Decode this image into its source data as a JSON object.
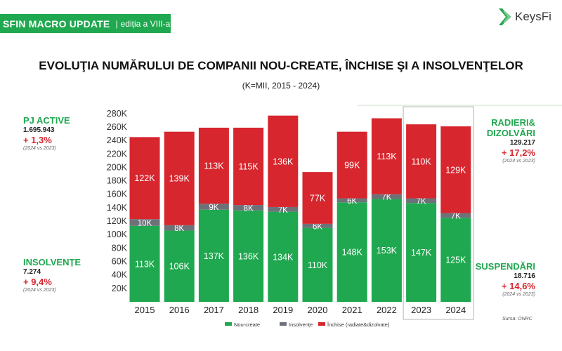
{
  "header": {
    "banner_title": "SFIN MACRO UPDATE",
    "banner_separator": "|",
    "banner_subtitle": "ediția a VIII-a",
    "logo_text": "KeysFi"
  },
  "title": "EVOLUŢIA NUMĂRULUI DE COMPANII NOU-CREATE, ÎNCHISE ŞI A INSOLVENŢELOR",
  "subtitle": "(K=MII, 2015 - 2024)",
  "stats": {
    "pj_active": {
      "label": "PJ ACTIVE",
      "value": "1.695.943",
      "change": "+ 1,3%",
      "note": "(2024 vs 2023)"
    },
    "insolvente": {
      "label": "INSOLVENȚE",
      "value": "7.274",
      "change": "+ 9,4%",
      "note": "(2024 vs 2023)"
    },
    "radieri": {
      "label_line1": "RADIERI&",
      "label_line2": "DIZOLVĂRI",
      "value": "129.217",
      "change": "+ 17,2%",
      "note": "(2024 vs 2023)"
    },
    "suspendari": {
      "label": "SUSPENDĂRI",
      "value": "18.716",
      "change": "+ 14,6%",
      "note": "(2024 vs 2023)"
    }
  },
  "source": "Sursa: ONRC",
  "colors": {
    "green": "#1fa84f",
    "grey": "#6d7178",
    "red": "#d7262e"
  },
  "chart_data": {
    "type": "bar",
    "stacked": true,
    "categories": [
      "2015",
      "2016",
      "2017",
      "2018",
      "2019",
      "2020",
      "2021",
      "2022",
      "2023",
      "2024"
    ],
    "series": [
      {
        "name": "Nou-create",
        "color": "#1fa84f",
        "values": [
          113,
          106,
          137,
          136,
          134,
          110,
          148,
          153,
          147,
          125
        ],
        "labels": [
          "113K",
          "106K",
          "137K",
          "136K",
          "134K",
          "110K",
          "148K",
          "153K",
          "147K",
          "125K"
        ]
      },
      {
        "name": "Insolvențe",
        "color": "#6d7178",
        "values": [
          10,
          8,
          9,
          8,
          7,
          6,
          6,
          7,
          7,
          7
        ],
        "labels": [
          "10K",
          "8K",
          "9K",
          "8K",
          "7K",
          "6K",
          "6K",
          "7K",
          "7K",
          "7K"
        ]
      },
      {
        "name": "Închise (radiate&dizolvate)",
        "color": "#d7262e",
        "values": [
          122,
          139,
          113,
          115,
          136,
          77,
          99,
          113,
          110,
          129
        ],
        "labels": [
          "122K",
          "139K",
          "113K",
          "115K",
          "136K",
          "77K",
          "99K",
          "113K",
          "110K",
          "129K"
        ]
      }
    ],
    "y_ticks": [
      "20K",
      "40K",
      "60K",
      "80K",
      "100K",
      "120K",
      "140K",
      "160K",
      "180K",
      "200K",
      "220K",
      "240K",
      "260K",
      "280K"
    ],
    "ylim": [
      0,
      285
    ],
    "unit": "K",
    "highlight": [
      "2023",
      "2024"
    ],
    "legend_position": "bottom"
  }
}
